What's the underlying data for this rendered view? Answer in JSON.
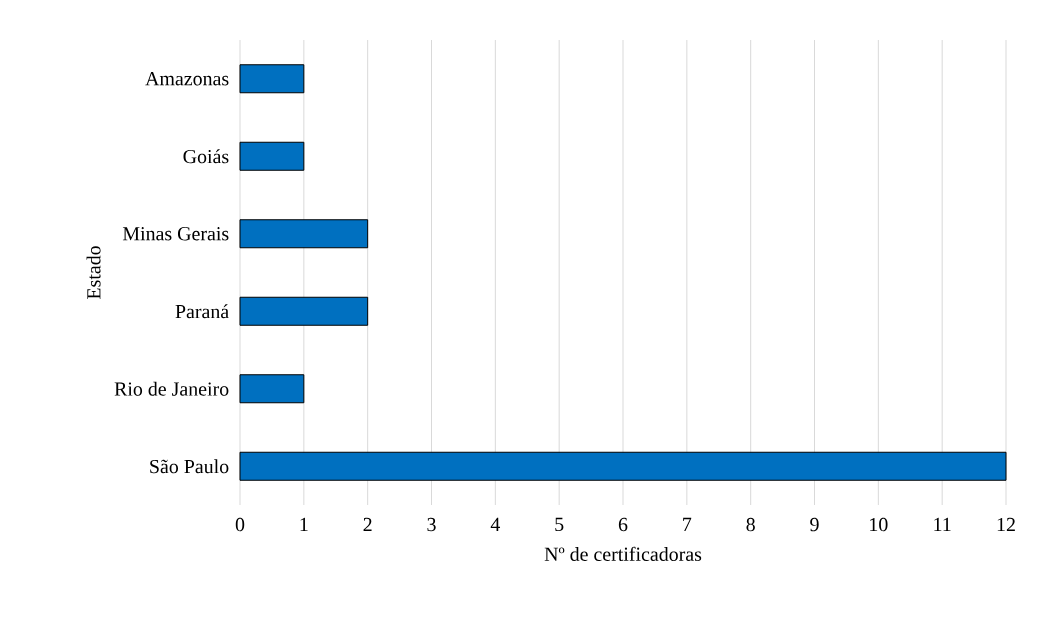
{
  "chart_data": {
    "type": "bar",
    "orientation": "horizontal",
    "xlabel": "Nº de certificadoras",
    "ylabel": "Estado",
    "categories": [
      "Amazonas",
      "Goiás",
      "Minas Gerais",
      "Paraná",
      "Rio de Janeiro",
      "São Paulo"
    ],
    "values": [
      1,
      1,
      2,
      2,
      1,
      12
    ],
    "color": "#0070c0",
    "xlim": [
      0,
      12
    ],
    "xticks": [
      0,
      1,
      2,
      3,
      4,
      5,
      6,
      7,
      8,
      9,
      10,
      11,
      12
    ],
    "grid": "x"
  }
}
